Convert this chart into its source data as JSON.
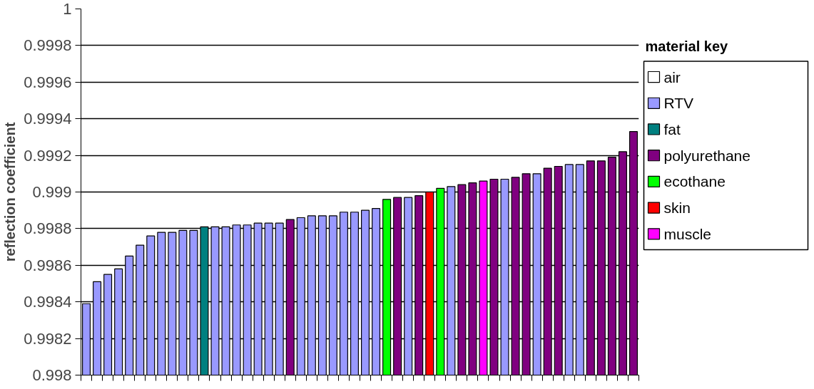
{
  "chart_data": {
    "type": "bar",
    "ylabel": "reflection coefficient",
    "legend_title": "material key",
    "categories": [
      null,
      null,
      null,
      null,
      null,
      null,
      null,
      null,
      null,
      null,
      null,
      null,
      null,
      null,
      null,
      null,
      null,
      null,
      null,
      null,
      null,
      null,
      null,
      null,
      null,
      null,
      null,
      null,
      null,
      null,
      null,
      null,
      null,
      null,
      null,
      null,
      null,
      null,
      null,
      null,
      null,
      null,
      null,
      null,
      null,
      null,
      null,
      null,
      null,
      null,
      null,
      null
    ],
    "series": [
      {
        "name": "air",
        "color": "#ffffff",
        "values": [
          null,
          null,
          null,
          null,
          null,
          null,
          null,
          null,
          null,
          null,
          null,
          null,
          null,
          null,
          null,
          null,
          null,
          null,
          null,
          null,
          null,
          null,
          null,
          null,
          null,
          null,
          null,
          null,
          null,
          null,
          null,
          null,
          null,
          null,
          null,
          null,
          null,
          null,
          null,
          null,
          null,
          null,
          null,
          null,
          null,
          null,
          null,
          null,
          null,
          null,
          null,
          null
        ]
      },
      {
        "name": "RTV",
        "color": "#9999ff",
        "values": [
          0.99839,
          0.99851,
          0.99855,
          0.99858,
          0.99865,
          0.99871,
          0.99876,
          0.99878,
          0.99878,
          0.99879,
          0.99879,
          null,
          0.99881,
          0.99881,
          0.99882,
          0.99882,
          0.99883,
          0.99883,
          0.99883,
          null,
          0.99886,
          0.99887,
          0.99887,
          0.99887,
          0.99889,
          0.99889,
          0.9989,
          0.99891,
          null,
          null,
          0.99897,
          null,
          null,
          null,
          0.99903,
          null,
          null,
          null,
          null,
          0.99907,
          null,
          null,
          0.9991,
          null,
          null,
          0.99915,
          0.99915,
          null,
          null,
          null,
          null,
          null
        ]
      },
      {
        "name": "fat",
        "color": "#008080",
        "values": [
          null,
          null,
          null,
          null,
          null,
          null,
          null,
          null,
          null,
          null,
          null,
          0.99881,
          null,
          null,
          null,
          null,
          null,
          null,
          null,
          null,
          null,
          null,
          null,
          null,
          null,
          null,
          null,
          null,
          null,
          null,
          null,
          null,
          null,
          null,
          null,
          null,
          null,
          null,
          null,
          null,
          null,
          null,
          null,
          null,
          null,
          null,
          null,
          null,
          null,
          null,
          null,
          null
        ]
      },
      {
        "name": "polyurethane",
        "color": "#800080",
        "values": [
          null,
          null,
          null,
          null,
          null,
          null,
          null,
          null,
          null,
          null,
          null,
          null,
          null,
          null,
          null,
          null,
          null,
          null,
          null,
          0.99885,
          null,
          null,
          null,
          null,
          null,
          null,
          null,
          null,
          null,
          0.99897,
          null,
          0.99898,
          null,
          null,
          null,
          0.99904,
          0.99905,
          null,
          0.99907,
          null,
          0.99908,
          0.9991,
          null,
          0.99913,
          0.99914,
          null,
          null,
          0.99917,
          0.99917,
          0.99919,
          0.99922,
          0.99933
        ]
      },
      {
        "name": "ecothane",
        "color": "#00ff00",
        "values": [
          null,
          null,
          null,
          null,
          null,
          null,
          null,
          null,
          null,
          null,
          null,
          null,
          null,
          null,
          null,
          null,
          null,
          null,
          null,
          null,
          null,
          null,
          null,
          null,
          null,
          null,
          null,
          null,
          0.99896,
          null,
          null,
          null,
          null,
          0.99902,
          null,
          null,
          null,
          null,
          null,
          null,
          null,
          null,
          null,
          null,
          null,
          null,
          null,
          null,
          null,
          null,
          null,
          null
        ]
      },
      {
        "name": "skin",
        "color": "#ff0000",
        "values": [
          null,
          null,
          null,
          null,
          null,
          null,
          null,
          null,
          null,
          null,
          null,
          null,
          null,
          null,
          null,
          null,
          null,
          null,
          null,
          null,
          null,
          null,
          null,
          null,
          null,
          null,
          null,
          null,
          null,
          null,
          null,
          null,
          0.999,
          null,
          null,
          null,
          null,
          null,
          null,
          null,
          null,
          null,
          null,
          null,
          null,
          null,
          null,
          null,
          null,
          null,
          null,
          null
        ]
      },
      {
        "name": "muscle",
        "color": "#ff00ff",
        "values": [
          null,
          null,
          null,
          null,
          null,
          null,
          null,
          null,
          null,
          null,
          null,
          null,
          null,
          null,
          null,
          null,
          null,
          null,
          null,
          null,
          null,
          null,
          null,
          null,
          null,
          null,
          null,
          null,
          null,
          null,
          null,
          null,
          null,
          null,
          null,
          null,
          null,
          0.99906,
          null,
          null,
          null,
          null,
          null,
          null,
          null,
          null,
          null,
          null,
          null,
          null,
          null,
          null
        ]
      }
    ],
    "ylim": [
      0.998,
      1
    ],
    "yticks": [
      0.998,
      0.9982,
      0.9984,
      0.9986,
      0.9988,
      0.999,
      0.9992,
      0.9994,
      0.9996,
      0.9998,
      1
    ],
    "grid": "y",
    "legend": "right",
    "tick_labels": "y"
  }
}
